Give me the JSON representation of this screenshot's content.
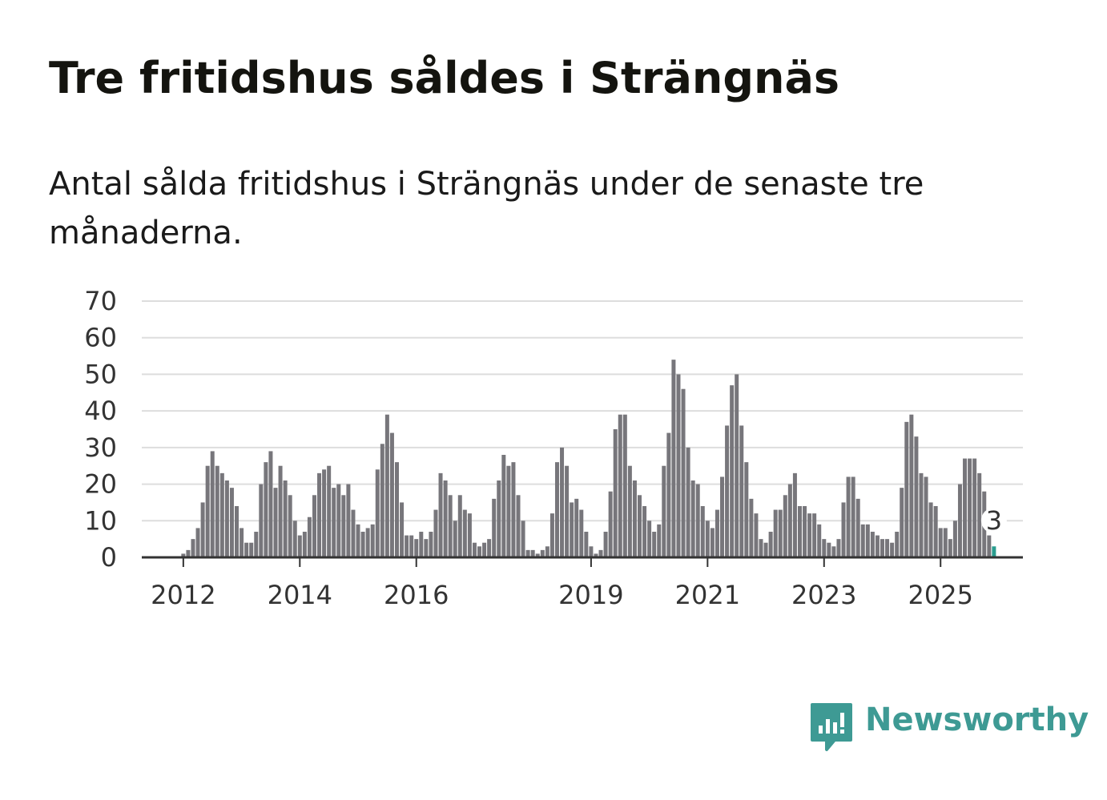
{
  "header": {
    "title": "Tre fritidshus såldes i Strängnäs",
    "subtitle": "Antal sålda fritidshus i Strängnäs under de senaste tre månaderna."
  },
  "brand": {
    "name": "Newsworthy",
    "icon": "newsworthy-logo-icon",
    "color": "#3e9a94"
  },
  "colors": {
    "bar": "#77767b",
    "highlight": "#2a9d8f",
    "grid": "#dddddd",
    "axis": "#333333"
  },
  "chart_data": {
    "type": "bar",
    "title": "Tre fritidshus såldes i Strängnäs",
    "xlabel": "",
    "ylabel": "",
    "ylim": [
      0,
      70
    ],
    "yticks": [
      0,
      10,
      20,
      30,
      40,
      50,
      60,
      70
    ],
    "xticks": [
      {
        "label": "2012",
        "index": 6
      },
      {
        "label": "2014",
        "index": 30
      },
      {
        "label": "2016",
        "index": 54
      },
      {
        "label": "2019",
        "index": 90
      },
      {
        "label": "2021",
        "index": 114
      },
      {
        "label": "2023",
        "index": 138
      },
      {
        "label": "2025",
        "index": 162
      }
    ],
    "grid": true,
    "values": [
      0,
      0,
      0,
      0,
      0,
      0,
      1,
      2,
      5,
      8,
      15,
      25,
      29,
      25,
      23,
      21,
      19,
      14,
      8,
      4,
      4,
      7,
      20,
      26,
      29,
      19,
      25,
      21,
      17,
      10,
      6,
      7,
      11,
      17,
      23,
      24,
      25,
      19,
      20,
      17,
      20,
      13,
      9,
      7,
      8,
      9,
      24,
      31,
      39,
      34,
      26,
      15,
      6,
      6,
      5,
      7,
      5,
      7,
      13,
      23,
      21,
      17,
      10,
      17,
      13,
      12,
      4,
      3,
      4,
      5,
      16,
      21,
      28,
      25,
      26,
      17,
      10,
      2,
      2,
      1,
      2,
      3,
      12,
      26,
      30,
      25,
      15,
      16,
      13,
      7,
      3,
      1,
      2,
      7,
      18,
      35,
      39,
      39,
      25,
      21,
      17,
      14,
      10,
      7,
      9,
      25,
      34,
      54,
      50,
      46,
      30,
      21,
      20,
      14,
      10,
      8,
      13,
      22,
      36,
      47,
      50,
      36,
      26,
      16,
      12,
      5,
      4,
      7,
      13,
      13,
      17,
      20,
      23,
      14,
      14,
      12,
      12,
      9,
      5,
      4,
      3,
      5,
      15,
      22,
      22,
      16,
      9,
      9,
      7,
      6,
      5,
      5,
      4,
      7,
      19,
      37,
      39,
      33,
      23,
      22,
      15,
      14,
      8,
      8,
      5,
      10,
      20,
      27,
      27,
      27,
      23,
      18,
      6,
      3
    ],
    "highlight_index": 173,
    "annotation": {
      "label": "3",
      "index": 173
    }
  }
}
